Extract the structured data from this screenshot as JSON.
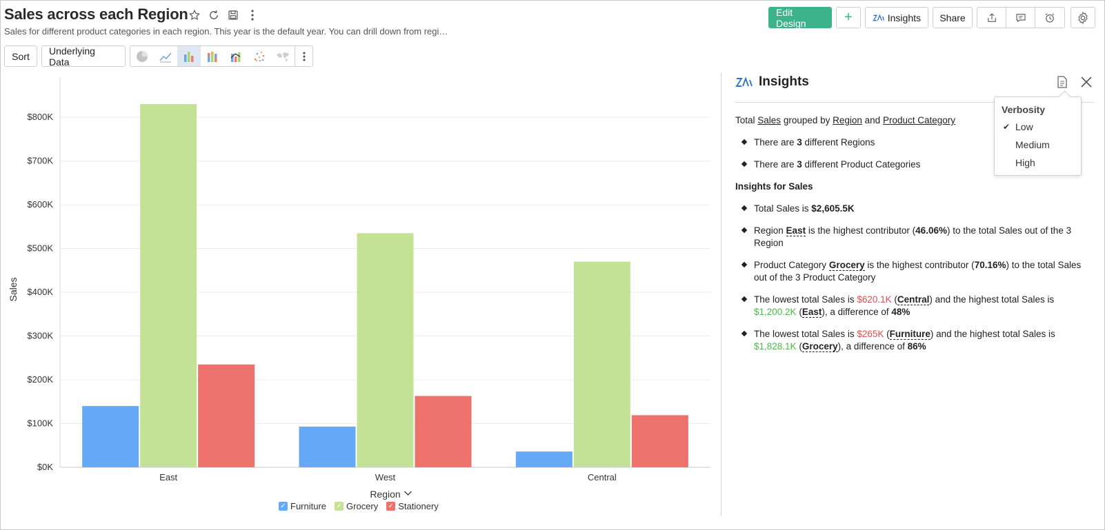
{
  "header": {
    "title": "Sales across each Region",
    "subtitle": "Sales for different product categories in each region. This year is the default year. You can drill down from regi…",
    "edit_design": "Edit Design",
    "add": "+",
    "insights": "Insights",
    "share": "Share"
  },
  "toolbar": {
    "sort": "Sort",
    "underlying_data": "Underlying Data"
  },
  "insights_panel": {
    "title": "Insights",
    "intro": {
      "a": "Total ",
      "b": "Sales",
      "c": " grouped by ",
      "d": "Region",
      "e": " and ",
      "f": "Product Category"
    },
    "b1": {
      "a": "There are ",
      "b": "3",
      "c": " different Regions"
    },
    "b2": {
      "a": "There are ",
      "b": "3",
      "c": " different Product Categories"
    },
    "section": "Insights for Sales",
    "b3": {
      "a": "Total Sales is ",
      "b": "$2,605.5K"
    },
    "b4": {
      "a": "Region ",
      "b": "East",
      "c": " is the highest contributor (",
      "d": "46.06%",
      "e": ") to the total Sales out of the 3 Region"
    },
    "b5": {
      "a": "Product Category ",
      "b": "Grocery",
      "c": " is the highest contributor (",
      "d": "70.16%",
      "e": ") to the total Sales out of the 3 Product Category"
    },
    "b6": {
      "a": "The lowest total Sales is ",
      "b": "$620.1K",
      "c": " (",
      "d": "Central",
      "e": ") and the highest total Sales is ",
      "f": "$1,200.2K",
      "g": " (",
      "h": "East",
      "i": "), a difference of ",
      "j": "48%"
    },
    "b7": {
      "a": "The lowest total Sales is ",
      "b": "$265K",
      "c": " (",
      "d": "Furniture",
      "e": ") and the highest total Sales is ",
      "f": "$1,828.1K",
      "g": " (",
      "h": "Grocery",
      "i": "), a difference of ",
      "j": "86%"
    }
  },
  "verbosity": {
    "title": "Verbosity",
    "options": [
      "Low",
      "Medium",
      "High"
    ],
    "selected": "Low"
  },
  "colors": {
    "primary": "#3cb38a",
    "furniture": "#66a9f7",
    "grocery": "#c3e296",
    "stationery": "#ed716d",
    "low_value": "#e24b4b",
    "high_value": "#4cb84c"
  },
  "chart_data": {
    "type": "bar",
    "categories": [
      "East",
      "West",
      "Central"
    ],
    "series": [
      {
        "name": "Furniture",
        "values": [
          140000,
          93000,
          36000
        ]
      },
      {
        "name": "Grocery",
        "values": [
          830000,
          535000,
          470000
        ]
      },
      {
        "name": "Stationery",
        "values": [
          235000,
          163000,
          119000
        ]
      }
    ],
    "xlabel": "Region",
    "ylabel": "Sales",
    "ylim": [
      0,
      860000
    ],
    "yticks": [
      "$0K",
      "$100K",
      "$200K",
      "$300K",
      "$400K",
      "$500K",
      "$600K",
      "$700K",
      "$800K"
    ],
    "ytick_values": [
      0,
      100000,
      200000,
      300000,
      400000,
      500000,
      600000,
      700000,
      800000
    ],
    "grid": true,
    "legend_position": "bottom"
  }
}
